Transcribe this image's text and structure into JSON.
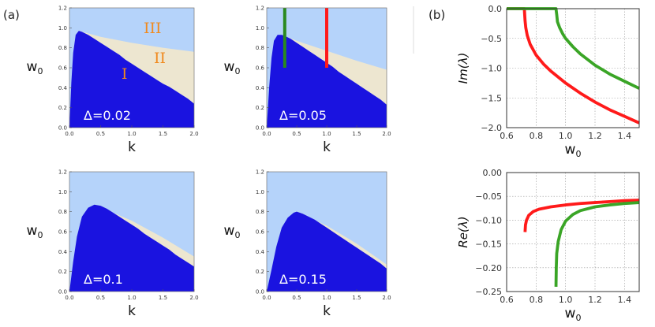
{
  "figure": {
    "label_a": "(a)",
    "label_b": "(b)"
  },
  "chart_data": [
    {
      "type": "area",
      "title": "Δ=0.02",
      "xlabel": "k",
      "ylabel": "w0",
      "xlim": [
        0,
        2
      ],
      "ylim": [
        0,
        1.2
      ],
      "xticks": [
        "0.0",
        "0.5",
        "1.0",
        "1.5",
        "2.0"
      ],
      "yticks": [
        "0.0",
        "0.2",
        "0.4",
        "0.6",
        "0.8",
        "1.0",
        "1.2"
      ],
      "region_labels": [
        "I",
        "II",
        "III"
      ],
      "series": [
        {
          "name": "I upper boundary",
          "x": [
            0,
            0.03,
            0.06,
            0.1,
            0.15,
            0.2,
            0.3,
            0.4,
            0.5,
            0.6,
            0.7,
            0.8,
            0.9,
            1.0,
            1.1,
            1.2,
            1.3,
            1.4,
            1.5,
            1.6,
            1.7,
            1.8,
            1.9,
            2.0
          ],
          "y": [
            0,
            0.45,
            0.75,
            0.93,
            0.97,
            0.96,
            0.93,
            0.89,
            0.85,
            0.81,
            0.77,
            0.73,
            0.68,
            0.64,
            0.6,
            0.56,
            0.52,
            0.48,
            0.44,
            0.41,
            0.37,
            0.33,
            0.29,
            0.24
          ]
        },
        {
          "name": "II upper boundary",
          "x": [
            0.15,
            0.5,
            1.0,
            1.5,
            2.0
          ],
          "y": [
            0.97,
            0.91,
            0.85,
            0.8,
            0.76
          ]
        }
      ],
      "markers": []
    },
    {
      "type": "area",
      "title": "Δ=0.05",
      "xlabel": "k",
      "ylabel": "w0",
      "xlim": [
        0,
        2
      ],
      "ylim": [
        0,
        1.2
      ],
      "xticks": [
        "0.0",
        "0.5",
        "1.0",
        "1.5",
        "2.0"
      ],
      "yticks": [
        "0.0",
        "0.2",
        "0.4",
        "0.6",
        "0.8",
        "1.0",
        "1.2"
      ],
      "region_labels": [],
      "series": [
        {
          "name": "I upper boundary",
          "x": [
            0,
            0.04,
            0.08,
            0.12,
            0.18,
            0.25,
            0.3,
            0.4,
            0.5,
            0.6,
            0.7,
            0.8,
            0.9,
            1.0,
            1.1,
            1.2,
            1.3,
            1.4,
            1.5,
            1.6,
            1.7,
            1.8,
            1.9,
            2.0
          ],
          "y": [
            0,
            0.4,
            0.7,
            0.87,
            0.93,
            0.93,
            0.92,
            0.89,
            0.85,
            0.81,
            0.77,
            0.73,
            0.69,
            0.65,
            0.61,
            0.56,
            0.52,
            0.48,
            0.44,
            0.4,
            0.36,
            0.32,
            0.28,
            0.23
          ]
        },
        {
          "name": "II upper boundary",
          "x": [
            0.25,
            0.5,
            1.0,
            1.5,
            2.0
          ],
          "y": [
            0.93,
            0.87,
            0.77,
            0.67,
            0.58
          ]
        }
      ],
      "markers": [
        {
          "k": 0.3,
          "from": 0.6,
          "to": 1.2,
          "color": "#2a8a1f"
        },
        {
          "k": 1.0,
          "from": 0.6,
          "to": 1.2,
          "color": "#ff1a1a"
        }
      ]
    },
    {
      "type": "area",
      "title": "Δ=0.1",
      "xlabel": "k",
      "ylabel": "w0",
      "xlim": [
        0,
        2
      ],
      "ylim": [
        0,
        1.2
      ],
      "xticks": [
        "0.0",
        "0.5",
        "1.0",
        "1.5",
        "2.0"
      ],
      "yticks": [
        "0.0",
        "0.2",
        "0.4",
        "0.6",
        "0.8",
        "1.0",
        "1.2"
      ],
      "region_labels": [],
      "series": [
        {
          "name": "I upper boundary",
          "x": [
            0,
            0.06,
            0.12,
            0.2,
            0.3,
            0.4,
            0.5,
            0.6,
            0.7,
            0.8,
            0.9,
            1.0,
            1.1,
            1.2,
            1.3,
            1.4,
            1.5,
            1.6,
            1.7,
            1.8,
            1.9,
            2.0
          ],
          "y": [
            0,
            0.3,
            0.55,
            0.75,
            0.84,
            0.87,
            0.86,
            0.83,
            0.79,
            0.75,
            0.71,
            0.67,
            0.63,
            0.58,
            0.54,
            0.5,
            0.46,
            0.42,
            0.37,
            0.33,
            0.29,
            0.25
          ]
        },
        {
          "name": "II upper boundary",
          "x": [
            0.4,
            1.0,
            1.5,
            2.0
          ],
          "y": [
            0.87,
            0.71,
            0.54,
            0.35
          ]
        }
      ],
      "markers": []
    },
    {
      "type": "area",
      "title": "Δ=0.15",
      "xlabel": "k",
      "ylabel": "w0",
      "xlim": [
        0,
        2
      ],
      "ylim": [
        0,
        1.2
      ],
      "xticks": [
        "0.0",
        "0.5",
        "1.0",
        "1.5",
        "2.0"
      ],
      "yticks": [
        "0.0",
        "0.2",
        "0.4",
        "0.6",
        "0.8",
        "1.0",
        "1.2"
      ],
      "region_labels": [],
      "series": [
        {
          "name": "I upper boundary",
          "x": [
            0,
            0.08,
            0.16,
            0.25,
            0.35,
            0.45,
            0.5,
            0.6,
            0.7,
            0.8,
            0.9,
            1.0,
            1.1,
            1.2,
            1.3,
            1.4,
            1.5,
            1.6,
            1.7,
            1.8,
            1.9,
            2.0
          ],
          "y": [
            0,
            0.22,
            0.45,
            0.64,
            0.74,
            0.79,
            0.8,
            0.78,
            0.75,
            0.72,
            0.68,
            0.64,
            0.6,
            0.56,
            0.52,
            0.48,
            0.44,
            0.4,
            0.36,
            0.32,
            0.28,
            0.23
          ]
        },
        {
          "name": "II upper boundary",
          "x": [
            0.5,
            1.0,
            1.5,
            2.0
          ],
          "y": [
            0.8,
            0.66,
            0.48,
            0.27
          ]
        }
      ],
      "markers": []
    },
    {
      "type": "line",
      "title": "",
      "xlabel": "w0",
      "ylabel": "Im(λ)",
      "xlim": [
        0.6,
        1.5
      ],
      "ylim": [
        -2.0,
        0.0
      ],
      "xticks": [
        "0.6",
        "0.8",
        "1.0",
        "1.2",
        "1.4"
      ],
      "yticks": [
        "0.0",
        "−0.5",
        "−1.0",
        "−1.5",
        "−2.0"
      ],
      "grid": true,
      "series": [
        {
          "name": "k=1.0",
          "color": "#ff1a1a",
          "x": [
            0.6,
            0.72,
            0.725,
            0.73,
            0.74,
            0.76,
            0.8,
            0.85,
            0.9,
            1.0,
            1.1,
            1.2,
            1.3,
            1.4,
            1.5
          ],
          "y": [
            0,
            0,
            -0.2,
            -0.32,
            -0.45,
            -0.6,
            -0.78,
            -0.93,
            -1.05,
            -1.25,
            -1.42,
            -1.57,
            -1.7,
            -1.81,
            -1.92
          ]
        },
        {
          "name": "k=0.3",
          "color": "#3aa526",
          "x": [
            0.6,
            0.935,
            0.94,
            0.945,
            0.96,
            0.98,
            1.0,
            1.05,
            1.1,
            1.2,
            1.3,
            1.4,
            1.5
          ],
          "y": [
            0,
            0,
            -0.1,
            -0.22,
            -0.32,
            -0.42,
            -0.5,
            -0.64,
            -0.76,
            -0.95,
            -1.1,
            -1.22,
            -1.34
          ]
        }
      ]
    },
    {
      "type": "line",
      "title": "",
      "xlabel": "w0",
      "ylabel": "Re(λ)",
      "xlim": [
        0.6,
        1.5
      ],
      "ylim": [
        -0.25,
        0.0
      ],
      "xticks": [
        "0.6",
        "0.8",
        "1.0",
        "1.2",
        "1.4"
      ],
      "yticks": [
        "0.00",
        "−0.05",
        "−0.10",
        "−0.15",
        "−0.20",
        "−0.25"
      ],
      "grid": true,
      "series": [
        {
          "name": "k=1.0",
          "color": "#ff1a1a",
          "x": [
            0.725,
            0.728,
            0.735,
            0.75,
            0.78,
            0.82,
            0.9,
            1.0,
            1.1,
            1.2,
            1.3,
            1.4,
            1.5
          ],
          "y": [
            -0.125,
            -0.11,
            -0.1,
            -0.09,
            -0.082,
            -0.077,
            -0.072,
            -0.068,
            -0.065,
            -0.063,
            -0.061,
            -0.059,
            -0.058
          ]
        },
        {
          "name": "k=0.3",
          "color": "#3aa526",
          "x": [
            0.935,
            0.937,
            0.94,
            0.95,
            0.97,
            1.0,
            1.05,
            1.1,
            1.2,
            1.3,
            1.4,
            1.5
          ],
          "y": [
            -0.24,
            -0.2,
            -0.17,
            -0.145,
            -0.12,
            -0.102,
            -0.088,
            -0.08,
            -0.072,
            -0.068,
            -0.065,
            -0.063
          ]
        }
      ]
    }
  ]
}
